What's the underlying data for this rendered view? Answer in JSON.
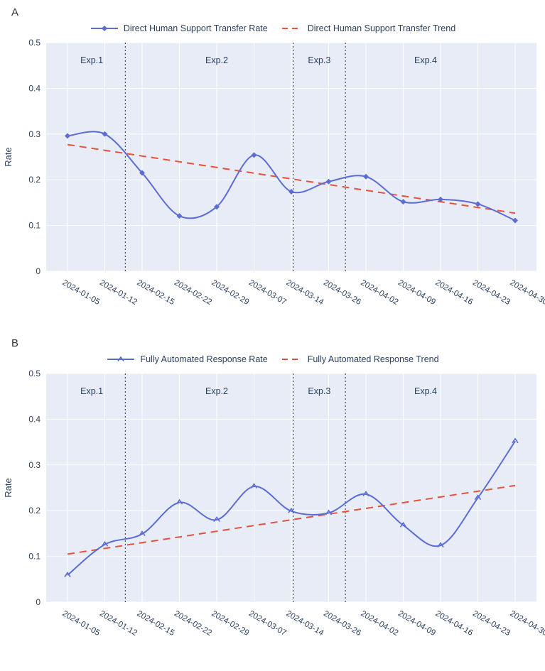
{
  "page": {
    "background": "#ffffff",
    "text_color": "#2a3f5f"
  },
  "chart_data": [
    {
      "type": "line",
      "panel_label": "A",
      "ylabel": "Rate",
      "ylim": [
        0,
        0.5
      ],
      "yticks": [
        0,
        0.1,
        0.2,
        0.3,
        0.4,
        0.5
      ],
      "grid": true,
      "legend_position": "top-center",
      "plot_bg": "#e7ecf6",
      "grid_color": "#ffffff",
      "divider_color": "#4a4a4a",
      "categories": [
        "2024-01-05",
        "2024-01-12",
        "2024-02-15",
        "2024-02-22",
        "2024-02-29",
        "2024-03-07",
        "2024-03-14",
        "2024-03-26",
        "2024-04-02",
        "2024-04-09",
        "2024-04-16",
        "2024-04-23",
        "2024-04-30"
      ],
      "series": [
        {
          "name": "Direct Human Support Transfer Rate",
          "style": "spline",
          "marker": "diamond",
          "color": "#5c6cd6",
          "values": [
            0.296,
            0.3,
            0.215,
            0.121,
            0.141,
            0.254,
            0.174,
            0.196,
            0.207,
            0.152,
            0.157,
            0.147,
            0.111
          ]
        },
        {
          "name": "Direct Human Support Transfer Trend",
          "style": "dashed",
          "color": "#e5533c",
          "trend_start": 0.277,
          "trend_end": 0.127
        }
      ],
      "annotations": [
        {
          "text": "Exp.1",
          "x": 0.65,
          "y": 0.455
        },
        {
          "text": "Exp.2",
          "x": 4.0,
          "y": 0.455
        },
        {
          "text": "Exp.3",
          "x": 6.75,
          "y": 0.455
        },
        {
          "text": "Exp.4",
          "x": 9.6,
          "y": 0.455
        }
      ],
      "dividers": [
        1.55,
        6.05,
        7.45
      ]
    },
    {
      "type": "line",
      "panel_label": "B",
      "ylabel": "Rate",
      "ylim": [
        0,
        0.5
      ],
      "yticks": [
        0,
        0.1,
        0.2,
        0.3,
        0.4,
        0.5
      ],
      "grid": true,
      "legend_position": "top-center",
      "plot_bg": "#e7ecf6",
      "grid_color": "#ffffff",
      "divider_color": "#4a4a4a",
      "categories": [
        "2024-01-05",
        "2024-01-12",
        "2024-02-15",
        "2024-02-22",
        "2024-02-29",
        "2024-03-07",
        "2024-03-14",
        "2024-03-26",
        "2024-04-02",
        "2024-04-09",
        "2024-04-16",
        "2024-04-23",
        "2024-04-30"
      ],
      "series": [
        {
          "name": "Fully Automated Response Rate",
          "style": "spline",
          "marker": "caret",
          "color": "#5c6cd6",
          "values": [
            0.059,
            0.126,
            0.149,
            0.218,
            0.18,
            0.253,
            0.199,
            0.195,
            0.236,
            0.168,
            0.124,
            0.228,
            0.352
          ]
        },
        {
          "name": "Fully Automated Response Trend",
          "style": "dashed",
          "color": "#e5533c",
          "trend_start": 0.105,
          "trend_end": 0.255
        }
      ],
      "annotations": [
        {
          "text": "Exp.1",
          "x": 0.65,
          "y": 0.455
        },
        {
          "text": "Exp.2",
          "x": 4.0,
          "y": 0.455
        },
        {
          "text": "Exp.3",
          "x": 6.75,
          "y": 0.455
        },
        {
          "text": "Exp.4",
          "x": 9.6,
          "y": 0.455
        }
      ],
      "dividers": [
        1.55,
        6.05,
        7.45
      ]
    }
  ]
}
